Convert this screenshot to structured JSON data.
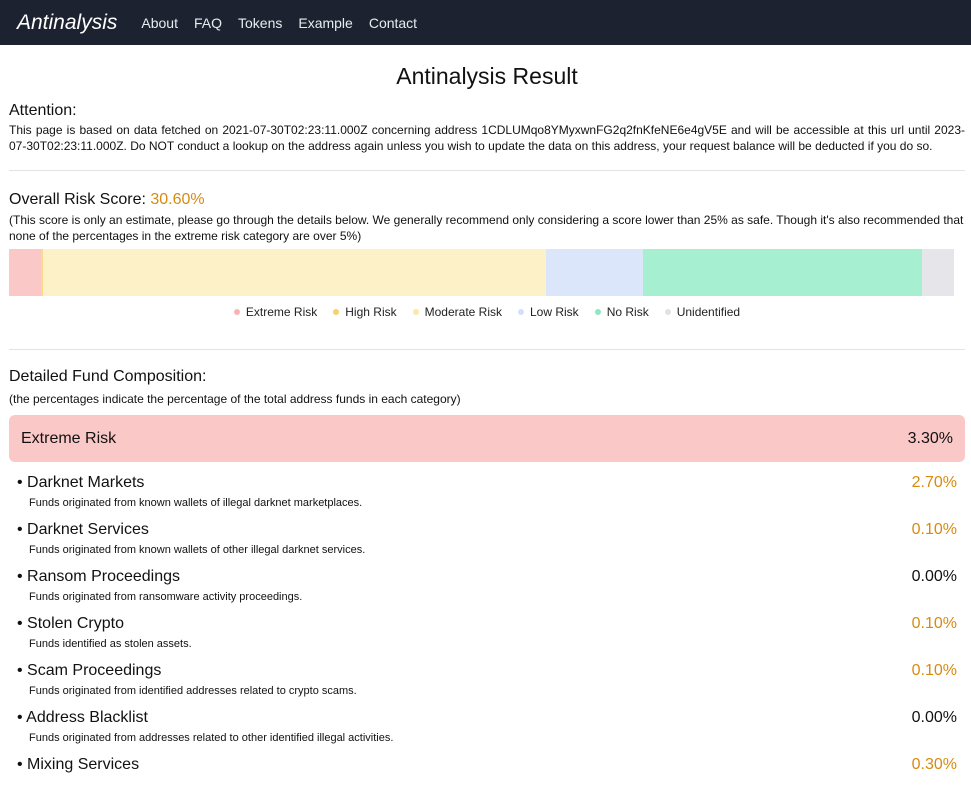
{
  "nav": {
    "brand": "Antinalysis",
    "links": [
      "About",
      "FAQ",
      "Tokens",
      "Example",
      "Contact"
    ]
  },
  "page_title": "Antinalysis Result",
  "attention": {
    "title": "Attention:",
    "text": "This page is based on data fetched on 2021-07-30T02:23:11.000Z concerning address 1CDLUMqo8YMyxwnFG2q2fnKfeNE6e4gV5E and will be accessible at this url until 2023-07-30T02:23:11.000Z. Do NOT conduct a lookup on the address again unless you wish to update the data on this address, your request balance will be deducted if you do so."
  },
  "risk": {
    "label": "Overall Risk Score:",
    "value": "30.60%",
    "note": "(This score is only an estimate, please go through the details below. We generally recommend only considering a score lower than 25% as safe. Though it's also recommended that none of the percentages in the extreme risk category are over 5%)",
    "segments": [
      {
        "name": "Extreme Risk",
        "fraction": 0.033,
        "color": "#fbc8c8"
      },
      {
        "name": "High Risk",
        "fraction": 0.003,
        "color": "#fbd98a"
      },
      {
        "name": "Moderate Risk",
        "fraction": 0.526,
        "color": "#fdf1c7"
      },
      {
        "name": "Low Risk",
        "fraction": 0.101,
        "color": "#dce6fb"
      },
      {
        "name": "No Risk",
        "fraction": 0.292,
        "color": "#a6f0d1"
      },
      {
        "name": "Unidentified",
        "fraction": 0.034,
        "color": "#e6e6ea"
      }
    ],
    "legend": [
      {
        "label": "Extreme Risk",
        "color": "#f8b4b4"
      },
      {
        "label": "High Risk",
        "color": "#f7cf6b"
      },
      {
        "label": "Moderate Risk",
        "color": "#fbe7a6"
      },
      {
        "label": "Low Risk",
        "color": "#d3e0f9"
      },
      {
        "label": "No Risk",
        "color": "#8de8c2"
      },
      {
        "label": "Unidentified",
        "color": "#e0e0e5"
      }
    ]
  },
  "composition": {
    "title": "Detailed Fund Composition:",
    "subtitle": "(the percentages indicate the percentage of the total address funds in each category)",
    "category": {
      "label": "Extreme Risk",
      "value": "3.30%"
    },
    "items": [
      {
        "name": "• Darknet Markets",
        "value": "2.70%",
        "desc": "Funds originated from known wallets of illegal darknet marketplaces.",
        "highlight": true
      },
      {
        "name": "• Darknet Services",
        "value": "0.10%",
        "desc": "Funds originated from known wallets of other illegal darknet services.",
        "highlight": true
      },
      {
        "name": "• Ransom Proceedings",
        "value": "0.00%",
        "desc": "Funds originated from ransomware activity proceedings.",
        "highlight": false
      },
      {
        "name": "• Stolen Crypto",
        "value": "0.10%",
        "desc": "Funds identified as stolen assets.",
        "highlight": true
      },
      {
        "name": "• Scam Proceedings",
        "value": "0.10%",
        "desc": "Funds originated from identified addresses related to crypto scams.",
        "highlight": true
      },
      {
        "name": "• Address Blacklist",
        "value": "0.00%",
        "desc": "Funds originated from addresses related to other identified illegal activities.",
        "highlight": false
      },
      {
        "name": "• Mixing Services",
        "value": "0.30%",
        "desc": "",
        "highlight": true
      }
    ]
  }
}
